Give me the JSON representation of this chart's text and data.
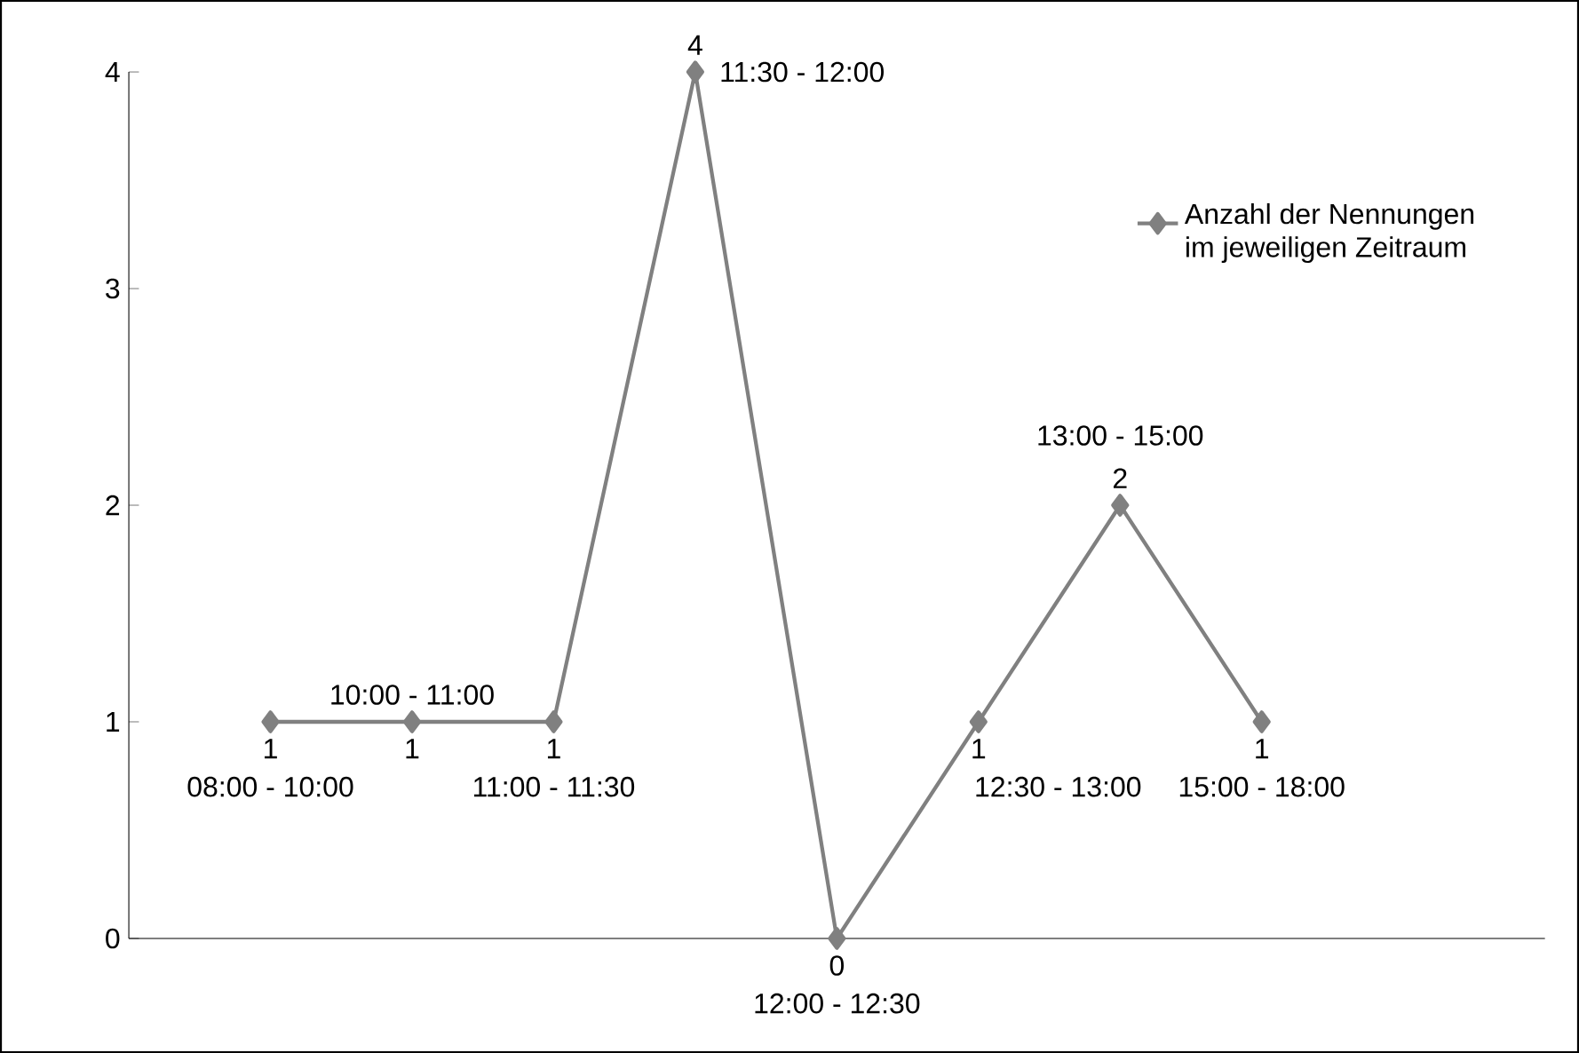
{
  "chart_data": {
    "type": "line",
    "categories": [
      null,
      null,
      null,
      null,
      null,
      null,
      null,
      null
    ],
    "series": [
      {
        "name": "Anzahl der Nennungen im jeweiligen Zeitraum",
        "color": "#808080",
        "values": [
          1,
          1,
          1,
          4,
          0,
          1,
          2,
          1
        ]
      }
    ],
    "annotations": [
      "08:00 - 10:00",
      "10:00 - 11:00",
      "11:00 - 11:30",
      "11:30 - 12:00",
      "12:00 - 12:30",
      "12:30 - 13:00",
      "13:00 - 15:00",
      "15:00 - 18:00"
    ],
    "ylim": [
      0,
      4
    ],
    "yticks": [
      0,
      1,
      2,
      3,
      4
    ],
    "marker": "diamond",
    "legend": "top right",
    "data_labels": true,
    "grid": false
  }
}
